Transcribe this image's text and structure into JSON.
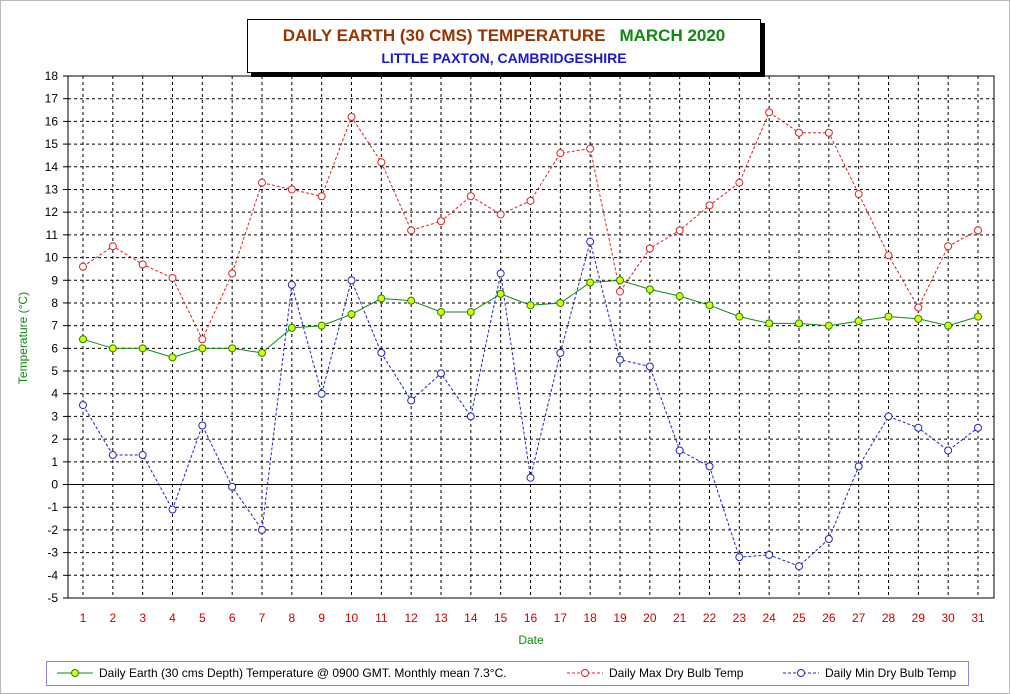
{
  "title": {
    "main": "DAILY EARTH (30 CMS) TEMPERATURE",
    "month": "MARCH 2020",
    "subtitle": "LITTLE PAXTON, CAMBRIDGESHIRE"
  },
  "colors": {
    "earth_line": "#118811",
    "earth_marker": "#e0ff00",
    "max_series": "#dd2222",
    "min_series": "#2222cc",
    "axis_label": "#118811",
    "tick_label": "#cc0000",
    "title_main": "#993300",
    "title_month": "#118811",
    "subtitle": "#1a1acc"
  },
  "chart_data": {
    "type": "line",
    "xlabel": "Date",
    "ylabel": "Temperature (°C)",
    "x": [
      1,
      2,
      3,
      4,
      5,
      6,
      7,
      8,
      9,
      10,
      11,
      12,
      13,
      14,
      15,
      16,
      17,
      18,
      19,
      20,
      21,
      22,
      23,
      24,
      25,
      26,
      27,
      28,
      29,
      30,
      31
    ],
    "xlim": [
      1,
      31
    ],
    "ylim": [
      -5,
      18
    ],
    "y_ticks": [
      18,
      17,
      16,
      15,
      14,
      13,
      12,
      11,
      10,
      9,
      8,
      7,
      6,
      5,
      4,
      3,
      2,
      1,
      0,
      -1,
      -2,
      -3,
      -4,
      -5
    ],
    "grid": true,
    "legend_placement": "bottom",
    "series": [
      {
        "name": "Daily Earth (30 cms Depth) Temperature @ 0900 GMT. Monthly mean 7.3°C.",
        "style": "solid",
        "values": [
          6.4,
          6.0,
          6.0,
          5.6,
          6.0,
          6.0,
          5.8,
          6.9,
          7.0,
          7.5,
          8.2,
          8.1,
          7.6,
          7.6,
          8.4,
          7.9,
          8.0,
          8.9,
          9.0,
          8.6,
          8.3,
          7.9,
          7.4,
          7.1,
          7.1,
          7.0,
          7.2,
          7.4,
          7.3,
          7.0,
          7.4
        ]
      },
      {
        "name": "Daily Max Dry Bulb Temp",
        "style": "dashed",
        "values": [
          9.6,
          10.5,
          9.7,
          9.1,
          6.4,
          9.3,
          13.3,
          13.0,
          12.7,
          16.2,
          14.2,
          11.2,
          11.6,
          12.7,
          11.9,
          12.5,
          14.6,
          14.8,
          8.5,
          10.4,
          11.2,
          12.3,
          13.3,
          16.4,
          15.5,
          15.5,
          12.8,
          10.1,
          7.8,
          10.5,
          11.2
        ]
      },
      {
        "name": "Daily Min Dry Bulb Temp",
        "style": "dashed",
        "values": [
          3.5,
          1.3,
          1.3,
          -1.1,
          2.6,
          -0.1,
          -2.0,
          8.8,
          4.0,
          9.0,
          5.8,
          3.7,
          4.9,
          3.0,
          9.3,
          0.3,
          5.8,
          10.7,
          5.5,
          5.2,
          1.5,
          0.8,
          -3.2,
          -3.1,
          -3.6,
          -2.4,
          0.8,
          3.0,
          2.5,
          1.5,
          2.5
        ]
      }
    ]
  }
}
